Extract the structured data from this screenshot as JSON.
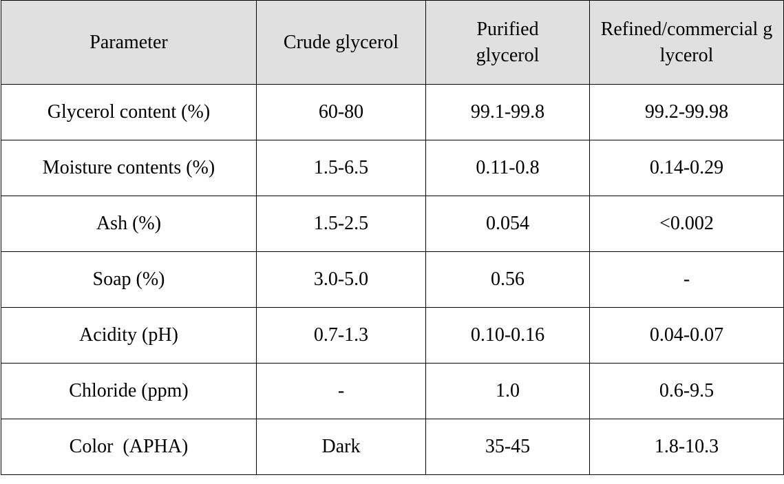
{
  "table": {
    "header": [
      "Parameter",
      "Crude glycerol",
      "Purified glycerol",
      "Refined/commercial glycerol"
    ],
    "rows": [
      [
        "Glycerol content (%)",
        "60-80",
        "99.1-99.8",
        "99.2-99.98"
      ],
      [
        "Moisture contents (%)",
        "1.5-6.5",
        "0.11-0.8",
        "0.14-0.29"
      ],
      [
        "Ash (%)",
        "1.5-2.5",
        "0.054",
        "<0.002"
      ],
      [
        "Soap (%)",
        "3.0-5.0",
        "0.56",
        "-"
      ],
      [
        "Acidity (pH)",
        "0.7-1.3",
        "0.10-0.16",
        "0.04-0.07"
      ],
      [
        "Chloride (ppm)",
        "-",
        "1.0",
        "0.6-9.5"
      ],
      [
        "Color  (APHA)",
        "Dark",
        "35-45",
        "1.8-10.3"
      ]
    ]
  }
}
